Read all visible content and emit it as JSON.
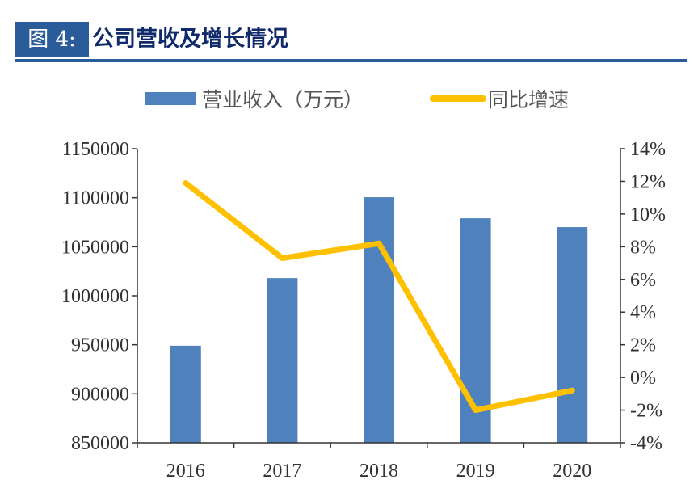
{
  "header": {
    "figure_label": "图 4:",
    "title": "公司营收及增长情况"
  },
  "colors": {
    "bar": "#4f81bd",
    "line": "#ffc000",
    "title_box": "#2b5c9a"
  },
  "chart_data": {
    "type": "bar+line",
    "title": "公司营收及增长情况",
    "categories": [
      "2016",
      "2017",
      "2018",
      "2019",
      "2020"
    ],
    "series": [
      {
        "name": "营业收入（万元）",
        "type": "bar",
        "axis": "left",
        "values": [
          949000,
          1018000,
          1100500,
          1079000,
          1070000
        ]
      },
      {
        "name": "同比增速",
        "type": "line",
        "axis": "right",
        "values": [
          11.9,
          7.3,
          8.2,
          -2.0,
          -0.8
        ]
      }
    ],
    "left_axis": {
      "ylim": [
        850000,
        1150000
      ],
      "ticks": [
        "850000",
        "900000",
        "950000",
        "1000000",
        "1050000",
        "1100000",
        "1150000"
      ]
    },
    "right_axis": {
      "ylim": [
        -4,
        14
      ],
      "ticks": [
        "-4%",
        "-2%",
        "0%",
        "2%",
        "4%",
        "6%",
        "8%",
        "10%",
        "12%",
        "14%"
      ]
    },
    "legend": "top",
    "grid": false
  }
}
